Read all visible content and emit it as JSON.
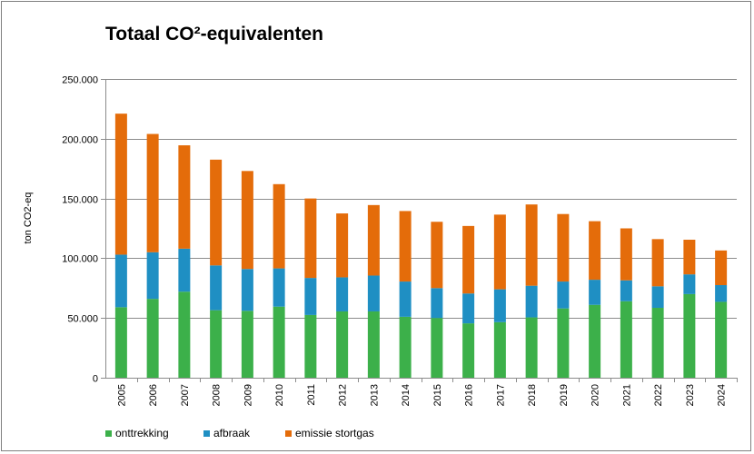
{
  "chart_data": {
    "type": "bar",
    "stacked": true,
    "title": "Totaal CO²-equivalenten",
    "ylabel": "ton CO2-eq",
    "xlabel": "",
    "ylim": [
      0,
      250000
    ],
    "ytick_values": [
      0,
      50000,
      100000,
      150000,
      200000,
      250000
    ],
    "ytick_labels": [
      "0",
      "50.000",
      "100.000",
      "150.000",
      "200.000",
      "250.000"
    ],
    "grid": true,
    "legend_position": "bottom",
    "categories": [
      "2005",
      "2006",
      "2007",
      "2008",
      "2009",
      "2010",
      "2011",
      "2012",
      "2013",
      "2014",
      "2015",
      "2016",
      "2017",
      "2018",
      "2019",
      "2020",
      "2021",
      "2022",
      "2023",
      "2024"
    ],
    "series": [
      {
        "name": "onttrekking",
        "color": "#3cb04a",
        "values": [
          59000,
          66000,
          72000,
          56500,
          56000,
          59500,
          52500,
          55500,
          55500,
          51000,
          50000,
          45500,
          46500,
          50500,
          58000,
          61000,
          64000,
          58500,
          70000,
          63500
        ]
      },
      {
        "name": "afbraak",
        "color": "#1f8fc3",
        "values": [
          44000,
          39000,
          36000,
          37500,
          35000,
          32000,
          31000,
          28500,
          30000,
          29500,
          25000,
          25000,
          27500,
          26500,
          22500,
          21000,
          17500,
          18000,
          16500,
          14000
        ]
      },
      {
        "name": "emissie stortgas",
        "color": "#e46c0a",
        "values": [
          118000,
          99000,
          86500,
          88500,
          82000,
          70500,
          66500,
          53500,
          59000,
          59000,
          55500,
          56500,
          62500,
          68000,
          56500,
          49000,
          43500,
          39500,
          29000,
          29000
        ]
      }
    ]
  }
}
